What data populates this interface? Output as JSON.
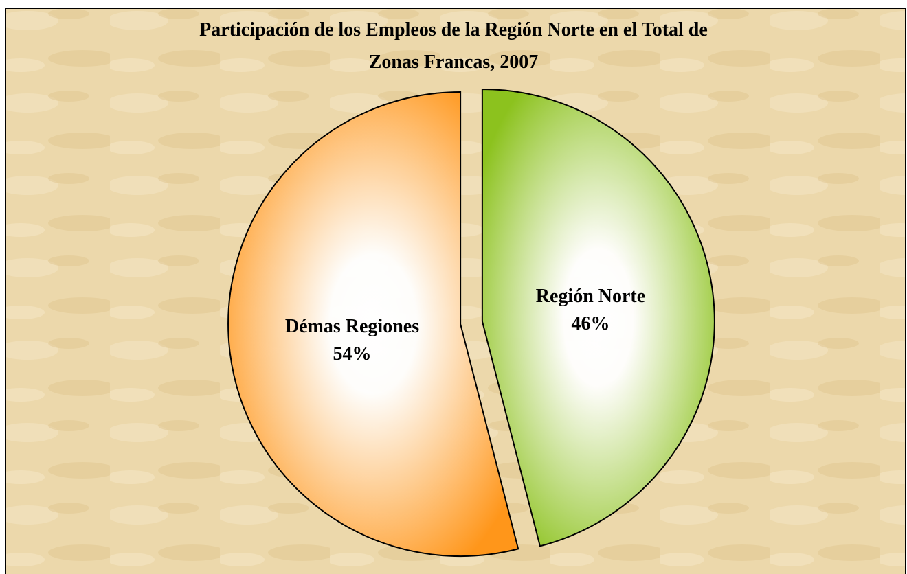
{
  "chart_data": {
    "type": "pie",
    "title_lines": [
      "Participación de los Empleos de la Región Norte en el Total de",
      "Zonas Francas,  2007"
    ],
    "categories": [
      "Región Norte",
      "Démas Regiones"
    ],
    "values": [
      46,
      54
    ],
    "value_labels": [
      "46%",
      "54%"
    ],
    "colors": [
      "#8cc21e",
      "#ff961a"
    ]
  }
}
